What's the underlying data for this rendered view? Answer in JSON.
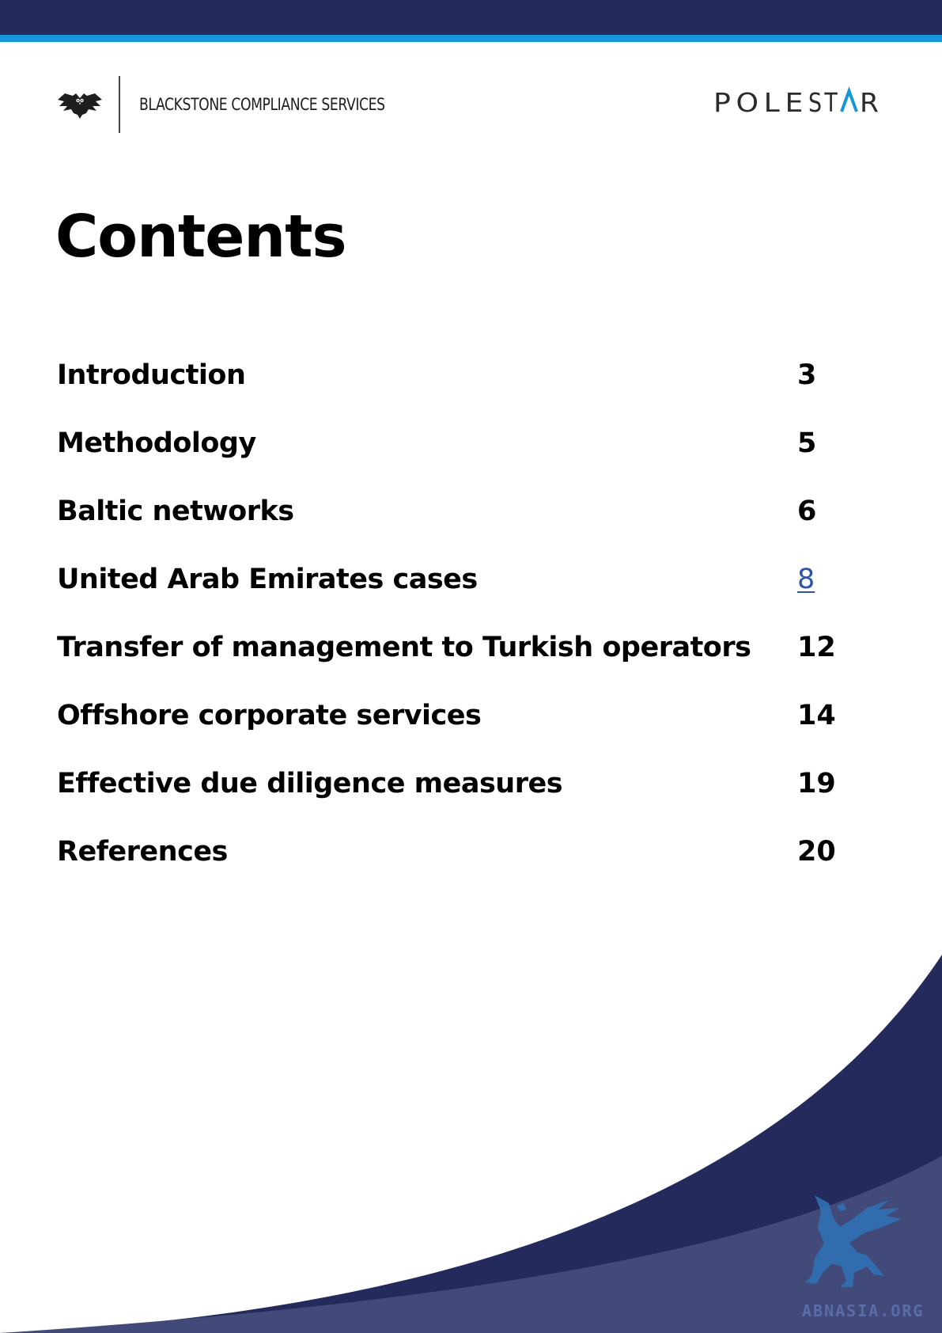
{
  "header": {
    "brand_name": "BLACKSTONE COMPLIANCE SERVICES",
    "partner_logo_text": "POLE STAR",
    "icons": [
      "owl-icon",
      "pole-star-logo"
    ]
  },
  "title": "Contents",
  "toc": [
    {
      "label": "Introduction",
      "page": "3"
    },
    {
      "label": "Methodology",
      "page": "5"
    },
    {
      "label": "Baltic networks",
      "page": "6"
    },
    {
      "label": "United Arab Emirates cases",
      "page": "8",
      "link": true
    },
    {
      "label": "Transfer of management to Turkish operators",
      "page": "12"
    },
    {
      "label": "Offshore corporate services",
      "page": "14"
    },
    {
      "label": "Effective due diligence measures",
      "page": "19"
    },
    {
      "label": "References",
      "page": "20"
    }
  ],
  "watermark": {
    "text": "ABNASIA.ORG",
    "icon": "griffin-icon"
  },
  "colors": {
    "navy": "#252a5c",
    "accent_blue": "#1596d8",
    "link_blue": "#2f55a4"
  }
}
